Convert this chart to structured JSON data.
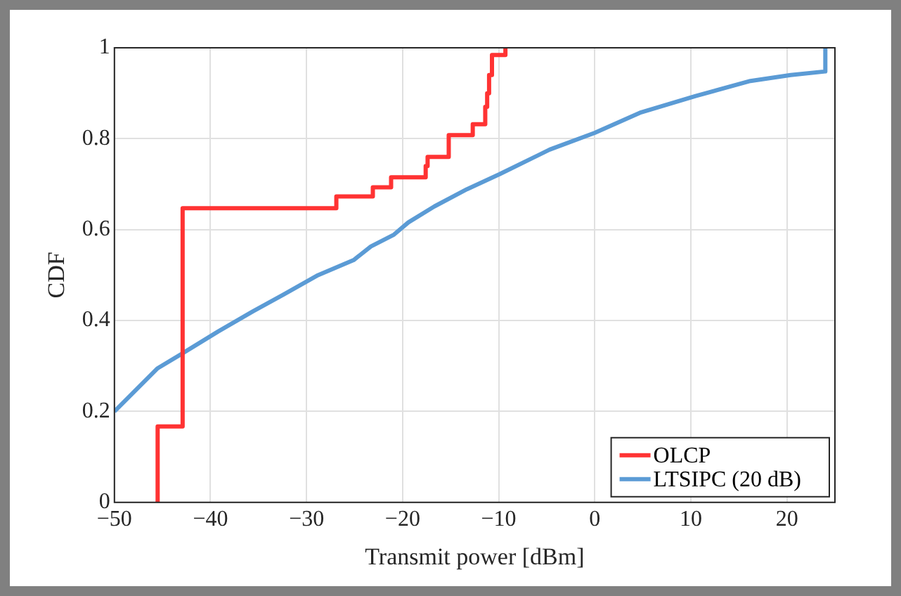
{
  "chart_data": {
    "type": "step",
    "xlabel": "Transmit power [dBm]",
    "ylabel": "CDF",
    "xlim": [
      -50,
      25
    ],
    "xticks": [
      -50,
      -40,
      -30,
      -20,
      -10,
      0,
      10,
      20
    ],
    "ylim": [
      0,
      1
    ],
    "yticks": [
      0,
      0.2,
      0.4,
      0.6,
      0.8,
      1
    ],
    "grid": true,
    "legend": "bottom right",
    "series": [
      {
        "name": "OLCP",
        "color": "#ff3333",
        "x": [
          -45.5,
          -45.5,
          -42.9,
          -26.9,
          -23.1,
          -21.2,
          -17.6,
          -17.4,
          -15.2,
          -12.7,
          -11.4,
          -11.2,
          -11.0,
          -10.7,
          -9.3
        ],
        "values": [
          0,
          0.167,
          0.647,
          0.673,
          0.693,
          0.715,
          0.74,
          0.76,
          0.808,
          0.832,
          0.87,
          0.9,
          0.94,
          0.984,
          1
        ]
      },
      {
        "name": "LTSIPC (20 dB)",
        "type": "line",
        "color": "#5b9bd5",
        "x": [
          -50,
          -45.5,
          -42.9,
          -39.2,
          -35.6,
          -32.4,
          -28.8,
          -25.1,
          -23.3,
          -20.9,
          -19.4,
          -16.7,
          -13.3,
          -9.9,
          -4.7,
          0,
          4.7,
          10.5,
          16.2,
          20.4,
          24.0,
          24.0
        ],
        "values": [
          0.2,
          0.295,
          0.328,
          0.376,
          0.42,
          0.457,
          0.5,
          0.533,
          0.563,
          0.589,
          0.616,
          0.651,
          0.689,
          0.722,
          0.776,
          0.813,
          0.857,
          0.894,
          0.927,
          0.94,
          0.948,
          1
        ]
      }
    ]
  }
}
